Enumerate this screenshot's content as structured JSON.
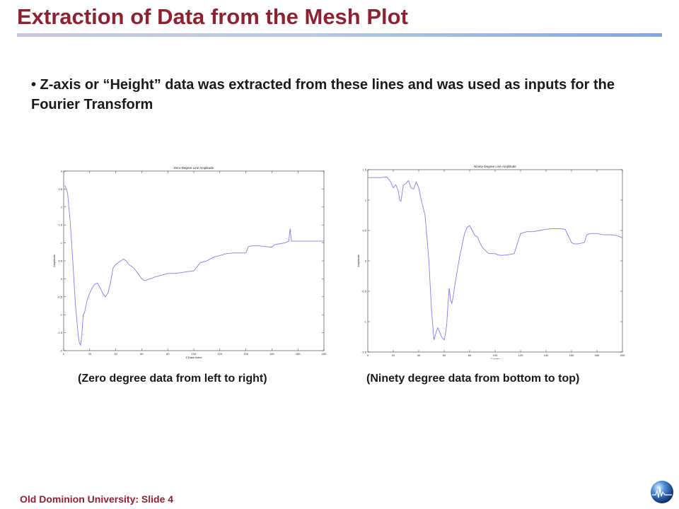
{
  "slide": {
    "title": "Extraction of Data from the Mesh Plot",
    "bullet": "• Z-axis or “Height” data was extracted from these lines and was used as inputs for the Fourier Transform",
    "footer": "Old Dominion University: Slide 4"
  },
  "colors": {
    "title": "#8b2332",
    "series": "#7f7fee",
    "footer": "#8b2332"
  },
  "icons": {
    "logo": "globe-logo-icon"
  },
  "chart_data": [
    {
      "type": "line",
      "title": "Zero-Degree Line Amplitude",
      "xlabel": "Z Data Index",
      "ylabel": "Amplitude",
      "caption": "(Zero degree data from left to right)",
      "xlim": [
        0,
        200
      ],
      "ylim": [
        -2,
        3
      ],
      "xticks": [
        0,
        20,
        40,
        60,
        80,
        100,
        120,
        140,
        160,
        180,
        200
      ],
      "yticks": [
        -2,
        -1.5,
        -1,
        -0.5,
        0,
        0.5,
        1,
        1.5,
        2,
        2.5,
        3
      ],
      "ytick_labels": [
        "-2",
        "-1.5",
        "-1",
        "-0.5",
        "0",
        "0.5",
        "1",
        "1.5",
        "2",
        "2.5",
        "3"
      ],
      "series": [
        {
          "x": [
            1,
            3,
            5,
            7,
            9,
            11,
            12,
            13,
            14,
            15,
            16,
            18,
            20,
            22,
            24,
            26,
            28,
            30,
            32,
            34,
            36,
            38,
            40,
            42,
            44,
            46,
            48,
            50,
            52,
            54,
            56,
            58,
            60,
            62,
            64,
            66,
            68,
            70,
            75,
            80,
            85,
            90,
            95,
            100,
            105,
            108,
            110,
            115,
            120,
            125,
            130,
            135,
            140,
            142,
            145,
            150,
            155,
            160,
            162,
            165,
            170,
            173,
            174,
            175,
            177,
            180,
            185,
            190,
            195,
            200
          ],
          "y": [
            2.6,
            2.4,
            1.6,
            0.5,
            -0.7,
            -1.5,
            -1.78,
            -1.85,
            -1.55,
            -1.0,
            -0.95,
            -0.6,
            -0.4,
            -0.25,
            -0.15,
            -0.12,
            -0.25,
            -0.4,
            -0.5,
            -0.4,
            -0.1,
            0.3,
            0.4,
            0.45,
            0.5,
            0.55,
            0.5,
            0.4,
            0.35,
            0.3,
            0.2,
            0.1,
            0.0,
            -0.05,
            -0.03,
            0.0,
            0.02,
            0.05,
            0.1,
            0.15,
            0.15,
            0.17,
            0.2,
            0.22,
            0.45,
            0.48,
            0.5,
            0.6,
            0.65,
            0.7,
            0.72,
            0.72,
            0.72,
            0.9,
            0.92,
            0.92,
            0.9,
            0.88,
            0.95,
            0.97,
            1.0,
            1.05,
            1.4,
            1.05,
            1.05,
            1.05,
            1.05,
            1.05,
            1.05,
            1.05
          ]
        }
      ]
    },
    {
      "type": "line",
      "title": "Ninety-Degree Line Amplitude",
      "xlabel": "Z Index",
      "ylabel": "Amplitude",
      "caption": "(Ninety degree data from bottom to top)",
      "xlim": [
        0,
        200
      ],
      "ylim": [
        -1.5,
        1.5
      ],
      "xticks": [
        0,
        20,
        40,
        60,
        80,
        100,
        120,
        140,
        160,
        180,
        200
      ],
      "yticks": [
        -1.5,
        -1,
        -0.5,
        0,
        0.5,
        1,
        1.5
      ],
      "ytick_labels": [
        "-1.5",
        "-1",
        "-0.5",
        "0",
        "0.5",
        "1",
        "1.5"
      ],
      "series": [
        {
          "x": [
            0,
            5,
            10,
            15,
            18,
            20,
            22,
            24,
            25,
            26,
            28,
            30,
            31,
            32,
            34,
            36,
            38,
            40,
            42,
            45,
            48,
            50,
            52,
            54,
            55,
            56,
            58,
            60,
            61,
            62,
            63,
            64,
            65,
            66,
            67,
            68,
            70,
            72,
            74,
            76,
            78,
            80,
            82,
            84,
            86,
            88,
            90,
            92,
            95,
            100,
            102,
            105,
            110,
            115,
            120,
            125,
            130,
            135,
            140,
            145,
            150,
            155,
            160,
            162,
            165,
            170,
            172,
            175,
            180,
            185,
            190,
            195,
            200
          ],
          "y": [
            1.37,
            1.37,
            1.37,
            1.38,
            1.3,
            1.2,
            1.25,
            1.15,
            1.0,
            0.98,
            1.25,
            1.27,
            1.3,
            1.32,
            1.2,
            1.18,
            1.3,
            1.2,
            1.0,
            0.75,
            0.0,
            -0.8,
            -1.3,
            -1.15,
            -1.1,
            -1.15,
            -1.25,
            -1.3,
            -1.2,
            -1.05,
            -0.7,
            -0.45,
            -0.65,
            -0.7,
            -0.6,
            -0.45,
            -0.2,
            0.05,
            0.25,
            0.45,
            0.55,
            0.58,
            0.5,
            0.42,
            0.4,
            0.3,
            0.22,
            0.18,
            0.12,
            0.12,
            0.1,
            0.09,
            0.1,
            0.12,
            0.45,
            0.48,
            0.48,
            0.5,
            0.52,
            0.53,
            0.53,
            0.52,
            0.3,
            0.28,
            0.28,
            0.3,
            0.43,
            0.45,
            0.45,
            0.43,
            0.43,
            0.42,
            0.38
          ]
        }
      ]
    }
  ]
}
